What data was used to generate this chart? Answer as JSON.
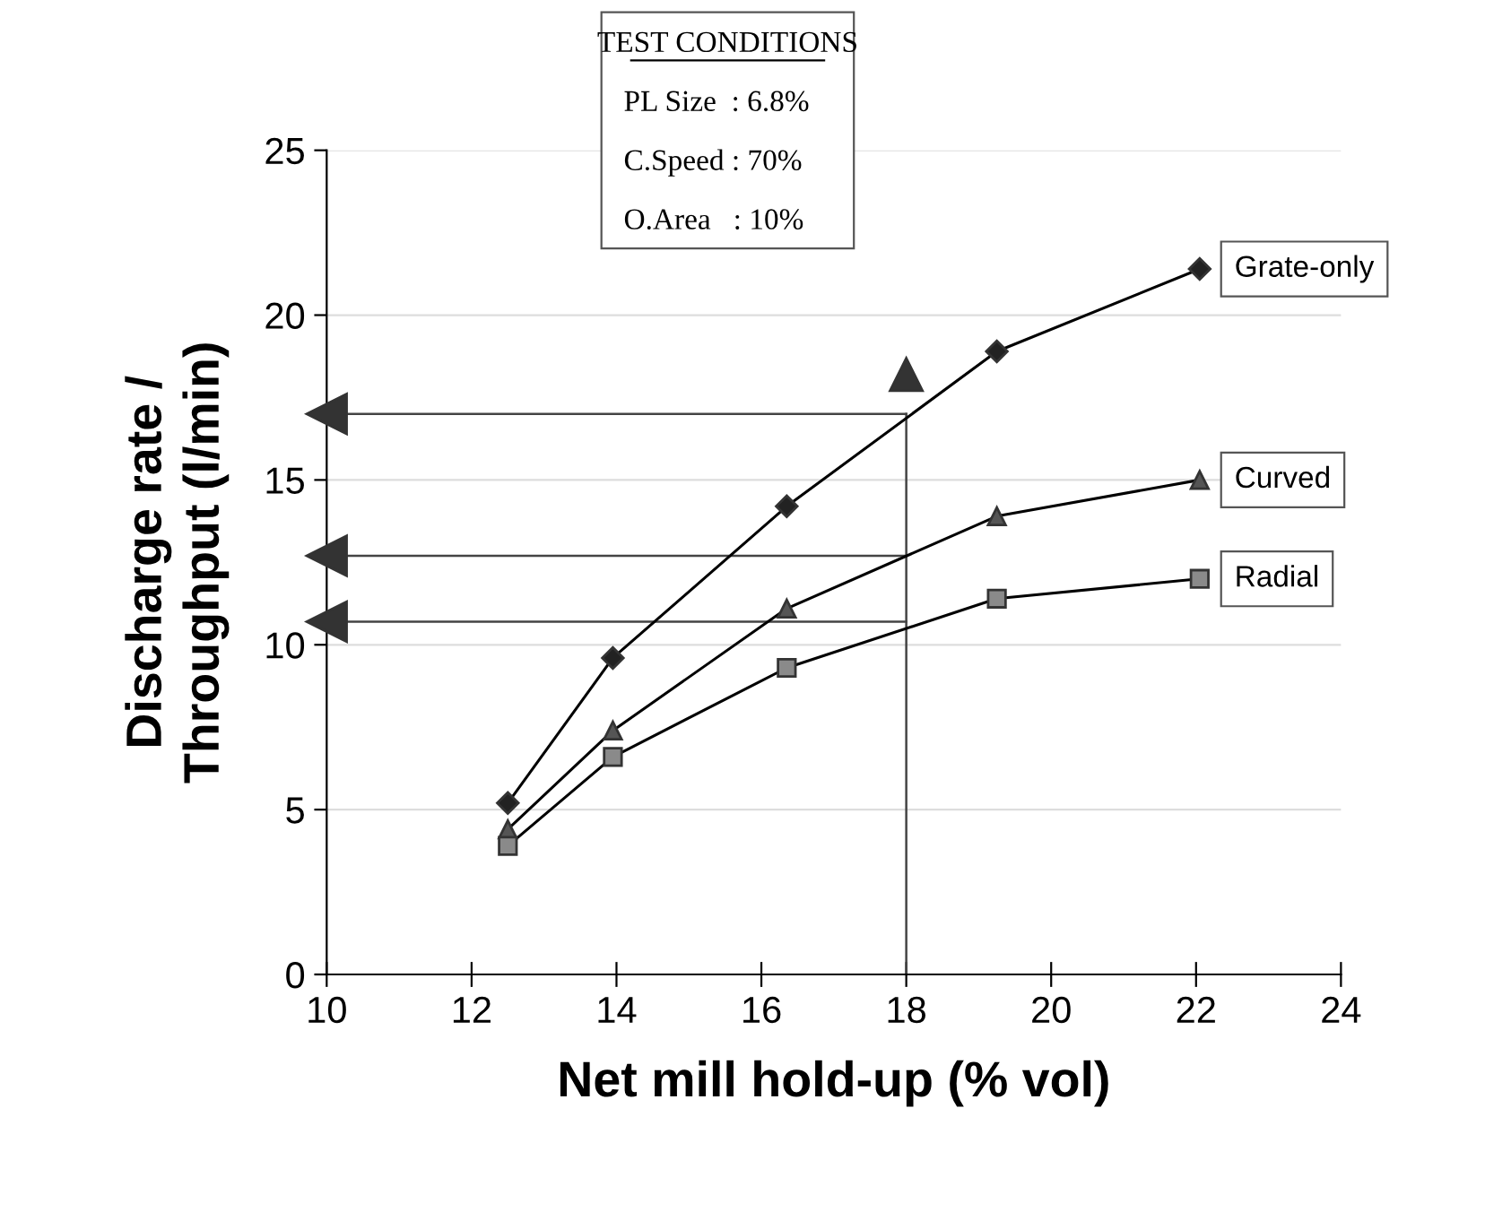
{
  "chart_data": {
    "type": "line",
    "xlabel": "Net mill hold-up (% vol)",
    "ylabel": "Discharge rate /\nThroughput (l/min)",
    "x": [
      12.5,
      13.95,
      16.35,
      19.25,
      22.05
    ],
    "series": [
      {
        "name": "Grate-only",
        "color": "#222222",
        "marker": "diamond",
        "values": [
          5.2,
          9.6,
          14.2,
          18.9,
          21.4
        ]
      },
      {
        "name": "Curved",
        "color": "#555555",
        "marker": "triangle",
        "values": [
          4.4,
          7.4,
          11.1,
          13.9,
          15.0
        ]
      },
      {
        "name": "Radial",
        "color": "#8a8a8a",
        "marker": "square",
        "values": [
          3.9,
          6.6,
          9.3,
          11.4,
          12.0
        ]
      }
    ],
    "xlim": [
      10,
      24
    ],
    "xticks": [
      10,
      12,
      14,
      16,
      18,
      20,
      22,
      24
    ],
    "ylim": [
      0,
      25
    ],
    "yticks": [
      0,
      5,
      10,
      15,
      20,
      25
    ],
    "grid": "y",
    "legend": false,
    "line_style": "solid",
    "ref_lines": [
      {
        "axis": "y",
        "value": 17.0,
        "label": null
      },
      {
        "axis": "y",
        "value": 12.7,
        "label": null
      },
      {
        "axis": "y",
        "value": 10.7,
        "label": null
      },
      {
        "axis": "x",
        "value": 18,
        "label": null
      }
    ],
    "annotations": [
      "TEST CONDITIONS",
      "PL Size  : 6.8%",
      "C.Speed : 70%",
      "O.Area   : 10%"
    ]
  }
}
